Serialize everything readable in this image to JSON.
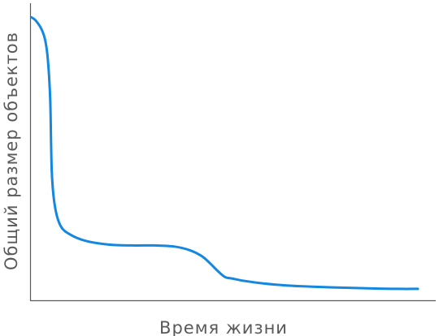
{
  "chart_data": {
    "type": "line",
    "xlabel": "Время жизни",
    "ylabel": "Общий размер объектов",
    "xlim": [
      0,
      100
    ],
    "ylim": [
      0,
      100
    ],
    "grid": false,
    "ticks": false,
    "line_color": "#1487e0",
    "axis_color": "#595959",
    "series": [
      {
        "x": [
          0,
          1,
          2.5,
          3.5,
          4.2,
          4.8,
          5.2,
          6,
          7.5,
          10,
          14,
          20,
          26,
          32,
          37,
          41,
          44,
          46,
          48,
          50,
          52,
          55,
          60,
          66,
          72,
          78,
          84,
          90,
          95,
          100
        ],
        "y": [
          99,
          98,
          95,
          91,
          84,
          70,
          45,
          33,
          26,
          23,
          20.8,
          19.5,
          19.2,
          19.2,
          18.8,
          17.5,
          15.5,
          13.2,
          10.5,
          8.2,
          7.6,
          6.8,
          5.9,
          5.2,
          4.8,
          4.5,
          4.3,
          4.1,
          4.0,
          4.0
        ]
      }
    ]
  }
}
